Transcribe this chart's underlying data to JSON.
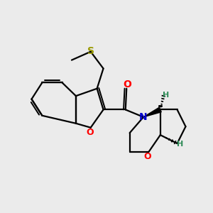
{
  "background_color": "#ebebeb",
  "bond_color": "#000000",
  "O_color": "#ff0000",
  "N_color": "#0000cd",
  "S_color": "#999900",
  "H_color": "#2e8b57",
  "line_width": 1.6,
  "figsize": [
    3.0,
    3.0
  ],
  "dpi": 100,
  "xlim": [
    0,
    10
  ],
  "ylim": [
    0,
    10
  ]
}
